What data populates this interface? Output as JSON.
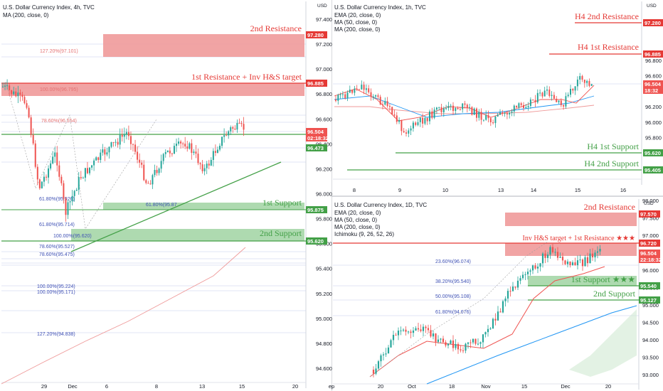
{
  "colors": {
    "bull": "#26a69a",
    "bear": "#ef5350",
    "resistance": "#e53935",
    "support": "#43a047",
    "fib_red": "#e57373",
    "fib_blue": "#3f51b5",
    "ema20": "#ef5350",
    "ma50": "#2196f3",
    "ma200": "#ef9a9a"
  },
  "chart_data": [
    {
      "type": "candlestick",
      "header": "U.S. Dollar Currency Index, 4h, TVC",
      "indicators": [
        "MA (200, close, 0)"
      ],
      "currency": "USD",
      "y_ticks": [
        "97.400",
        "97.200",
        "97.000",
        "96.800",
        "96.600",
        "96.400",
        "96.200",
        "96.000",
        "95.800",
        "95.600",
        "95.400",
        "95.200",
        "95.000",
        "94.800",
        "94.600"
      ],
      "x_ticks": [
        "29",
        "Dec",
        "6",
        "8",
        "13",
        "15",
        "20"
      ],
      "price_tags": [
        {
          "value": "97.280",
          "kind": "resistance"
        },
        {
          "value": "96.885",
          "kind": "resistance"
        },
        {
          "value": "96.504",
          "sub": "02:18:32",
          "kind": "bear"
        },
        {
          "value": "96.473",
          "kind": "support"
        },
        {
          "value": "95.875",
          "kind": "support"
        },
        {
          "value": "95.620",
          "kind": "support"
        }
      ],
      "zone_labels": [
        "2nd Resistance",
        "1st Resistance + Inv H&S target",
        "1st Support",
        "2nd Support"
      ],
      "fib_labels": [
        "127.20%(97.101)",
        "100.00%(96.795)",
        "78.60%(96.554)",
        "61.80%(95.926)",
        "61.80%(95.87",
        "61.80%(95.714)",
        "100.00%(95.620)",
        "78.60%(95.527)",
        "78.60%(95.475)",
        "100.00%(95.224)",
        "100.00%(95.171)",
        "127.20%(94.838)"
      ]
    },
    {
      "type": "candlestick",
      "header": "U.S. Dollar Currency Index, 1h, TVC",
      "indicators": [
        "EMA (20, close, 0)",
        "MA (50, close, 0)",
        "MA (200, close, 0)"
      ],
      "currency": "USD",
      "y_ticks": [
        "96.800",
        "96.600",
        "96.400",
        "96.200",
        "96.000",
        "95.800",
        "95.600",
        "95.400"
      ],
      "x_ticks": [
        "8",
        "9",
        "10",
        "13",
        "14",
        "15",
        "16"
      ],
      "price_tags": [
        {
          "value": "97.280",
          "kind": "resistance"
        },
        {
          "value": "96.885",
          "kind": "resistance"
        },
        {
          "value": "96.504",
          "sub": "18:32",
          "kind": "bear"
        },
        {
          "value": "95.620",
          "kind": "support"
        },
        {
          "value": "95.405",
          "kind": "support"
        }
      ],
      "zone_labels": [
        "H4 2nd Resistance",
        "H4 1st Resistance",
        "H4 1st Support",
        "H4 2nd Support"
      ]
    },
    {
      "type": "candlestick",
      "header": "U.S. Dollar Currency Index, 1D, TVC",
      "indicators": [
        "EMA (20, close, 0)",
        "MA (50, close, 0)",
        "MA (200, close, 0)",
        "Ichimoku (9, 26, 52, 26)"
      ],
      "currency": "USD",
      "y_ticks": [
        "98.000",
        "97.500",
        "97.000",
        "96.500",
        "96.000",
        "95.500",
        "95.000",
        "94.500",
        "94.000",
        "93.500",
        "93.000"
      ],
      "x_ticks": [
        "ep",
        "20",
        "Oct",
        "18",
        "Nov",
        "15",
        "Dec",
        "20"
      ],
      "price_tags": [
        {
          "value": "97.570",
          "kind": "resistance"
        },
        {
          "value": "96.720",
          "kind": "resistance"
        },
        {
          "value": "96.504",
          "sub": "22:18:32",
          "kind": "bear"
        },
        {
          "value": "95.540",
          "kind": "support"
        },
        {
          "value": "95.127",
          "kind": "support"
        }
      ],
      "zone_labels": [
        "2nd Resistance",
        "Inv H&S target + 1st Resistance ★★★",
        "1st Support ★★★",
        "2nd Support"
      ],
      "fib_labels": [
        "23.60%(96.074)",
        "38.20%(95.540)",
        "50.00%(95.108)",
        "61.80%(94.676)"
      ]
    }
  ]
}
